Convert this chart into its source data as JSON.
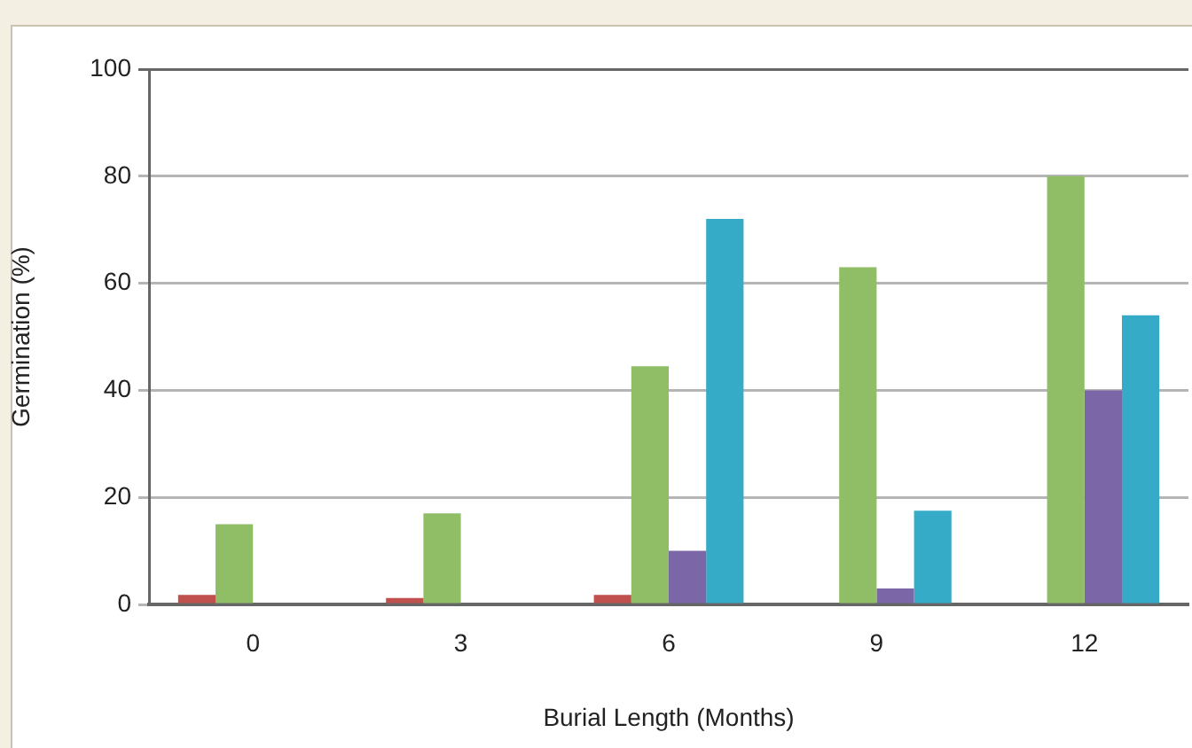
{
  "chart_data": {
    "type": "bar",
    "xlabel": "Burial Length (Months)",
    "ylabel": "Germination (%)",
    "categories": [
      "0",
      "3",
      "6",
      "9",
      "12"
    ],
    "series": [
      {
        "color": "#c0504d",
        "values": [
          1.8,
          1.2,
          1.8,
          0,
          0
        ]
      },
      {
        "color": "#8fbe66",
        "values": [
          15,
          17,
          44.5,
          63,
          80
        ]
      },
      {
        "color": "#7b66a8",
        "values": [
          0,
          0,
          10,
          3,
          40
        ]
      },
      {
        "color": "#36abc7",
        "values": [
          0,
          0,
          72,
          17.5,
          54
        ]
      }
    ],
    "ylim": [
      0,
      100
    ],
    "yticks": [
      0,
      20,
      40,
      60,
      80,
      100
    ],
    "grid": "y",
    "legend": false
  }
}
